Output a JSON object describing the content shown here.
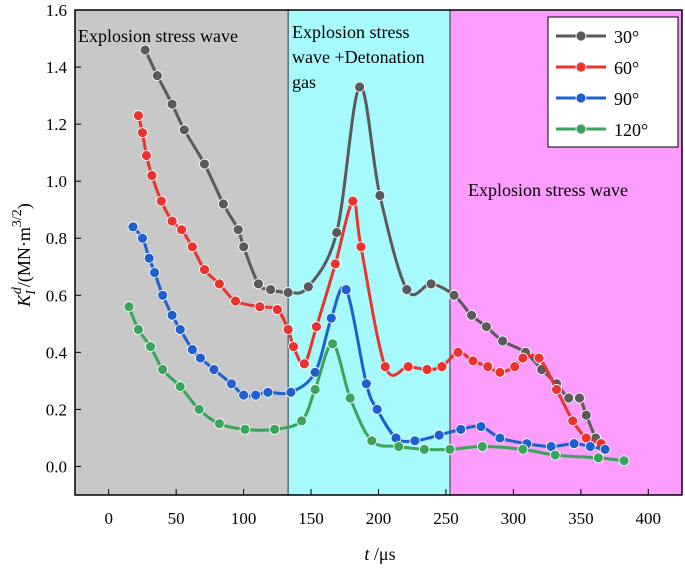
{
  "chart_data": {
    "type": "line",
    "xlabel": [
      "t",
      " /μs"
    ],
    "ylabel": [
      "K",
      "I",
      "d",
      "/(MN·m",
      "3/2",
      ")"
    ],
    "xlim": [
      -25,
      425
    ],
    "ylim": [
      -0.1,
      1.6
    ],
    "xticks": [
      0,
      50,
      100,
      150,
      200,
      250,
      300,
      350,
      400
    ],
    "yticks": [
      {
        "value": 0,
        "label": "0.0"
      },
      0.2,
      0.4,
      0.6,
      0.8,
      {
        "value": 1,
        "label": "1.0"
      },
      1.2,
      1.4,
      1.6
    ],
    "legend": "upper right",
    "regions": [
      {
        "xlim": [
          -25,
          133
        ],
        "color": "#c8c8c8",
        "label": [
          "Explosion stress wave"
        ]
      },
      {
        "xlim": [
          133,
          253
        ],
        "color": "#a6fafc",
        "label": [
          "Explosion stress",
          "wave +Detonation",
          "gas"
        ]
      },
      {
        "xlim": [
          253,
          425
        ],
        "color": "#fc9cfc",
        "label": [
          "Explosion stress wave"
        ]
      }
    ],
    "series": [
      {
        "name": "30°",
        "color": "#5a5a5a",
        "x": [
          27,
          36,
          47,
          56,
          71,
          85,
          96,
          100,
          111,
          120,
          133,
          148,
          169,
          186,
          201,
          221,
          239,
          256,
          269,
          280,
          292,
          309,
          321,
          332,
          341,
          349,
          354,
          361,
          365
        ],
        "values": [
          1.46,
          1.37,
          1.27,
          1.18,
          1.06,
          0.92,
          0.83,
          0.77,
          0.64,
          0.62,
          0.61,
          0.63,
          0.82,
          1.33,
          0.95,
          0.62,
          0.64,
          0.6,
          0.53,
          0.49,
          0.44,
          0.4,
          0.34,
          0.29,
          0.24,
          0.24,
          0.18,
          0.1,
          0.07
        ]
      },
      {
        "name": "60°",
        "color": "#e8332f",
        "x": [
          22,
          25,
          28,
          32,
          39,
          47,
          54,
          62,
          71,
          82,
          94,
          112,
          125,
          133,
          137,
          145,
          154,
          168,
          181,
          187,
          205,
          222,
          236,
          247,
          259,
          270,
          281,
          290,
          301,
          307,
          319,
          332,
          344,
          354,
          365
        ],
        "values": [
          1.23,
          1.17,
          1.09,
          1.02,
          0.93,
          0.86,
          0.83,
          0.77,
          0.69,
          0.64,
          0.58,
          0.56,
          0.55,
          0.48,
          0.42,
          0.36,
          0.49,
          0.71,
          0.93,
          0.77,
          0.35,
          0.35,
          0.34,
          0.35,
          0.4,
          0.37,
          0.35,
          0.33,
          0.35,
          0.38,
          0.38,
          0.27,
          0.16,
          0.1,
          0.08
        ]
      },
      {
        "name": "90°",
        "color": "#1f5fd0",
        "x": [
          18,
          25,
          30,
          34,
          40,
          47,
          53,
          62,
          68,
          78,
          91,
          100,
          109,
          118,
          135,
          153,
          165,
          176,
          191,
          199,
          213,
          227,
          245,
          261,
          276,
          290,
          310,
          328,
          345,
          357,
          368
        ],
        "values": [
          0.84,
          0.8,
          0.73,
          0.68,
          0.6,
          0.53,
          0.48,
          0.41,
          0.38,
          0.34,
          0.29,
          0.25,
          0.25,
          0.26,
          0.26,
          0.33,
          0.52,
          0.62,
          0.29,
          0.2,
          0.1,
          0.09,
          0.11,
          0.13,
          0.14,
          0.1,
          0.08,
          0.07,
          0.08,
          0.07,
          0.06
        ]
      },
      {
        "name": "120°",
        "color": "#3aa55a",
        "x": [
          15,
          22,
          31,
          40,
          53,
          67,
          82,
          101,
          123,
          143,
          153,
          166,
          179,
          195,
          215,
          234,
          253,
          277,
          307,
          331,
          363,
          382
        ],
        "values": [
          0.56,
          0.48,
          0.42,
          0.34,
          0.28,
          0.2,
          0.15,
          0.13,
          0.13,
          0.16,
          0.27,
          0.43,
          0.24,
          0.09,
          0.07,
          0.06,
          0.06,
          0.07,
          0.06,
          0.04,
          0.03,
          0.02
        ]
      }
    ]
  }
}
